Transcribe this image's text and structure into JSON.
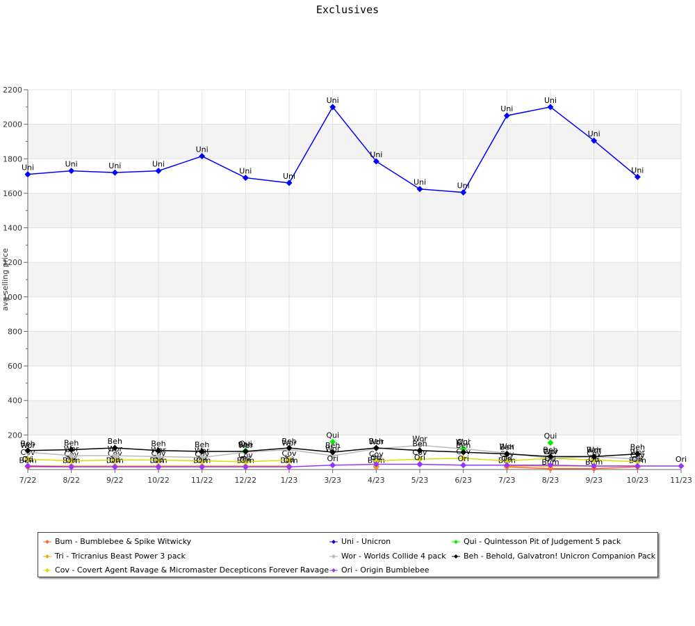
{
  "chart_data": {
    "type": "line",
    "title": "Exclusives",
    "ylabel": "avg selling price",
    "xlabel": "",
    "ylim": [
      0,
      2200
    ],
    "yticks": [
      200,
      400,
      600,
      800,
      1000,
      1200,
      1400,
      1600,
      1800,
      2000,
      2200
    ],
    "grid": true,
    "legend_position": "bottom",
    "categories": [
      "7/22",
      "8/22",
      "9/22",
      "10/22",
      "11/22",
      "12/22",
      "1/23",
      "3/23",
      "4/23",
      "5/23",
      "6/23",
      "7/23",
      "8/23",
      "9/23",
      "10/23",
      "11/23"
    ],
    "series": [
      {
        "name": "Bum - Bumblebee & Spike Witwicky",
        "short": "Bum",
        "color": "#ff6633",
        "values": [
          15,
          15,
          15,
          15,
          15,
          15,
          15,
          null,
          15,
          null,
          null,
          15,
          5,
          5,
          15,
          null
        ]
      },
      {
        "name": "Tri - Tricranius Beast Power 3 pack",
        "short": "Tri",
        "color": "#ffaa00",
        "values": [
          20,
          20,
          20,
          20,
          20,
          20,
          20,
          null,
          20,
          null,
          null,
          20,
          20,
          20,
          20,
          null
        ]
      },
      {
        "name": "Cov - Covert Agent Ravage & Micromaster Decepticons Forever Ravage",
        "short": "Cov",
        "color": "#dddd00",
        "values": [
          60,
          50,
          55,
          55,
          50,
          45,
          55,
          null,
          50,
          60,
          65,
          50,
          65,
          55,
          45,
          null
        ]
      },
      {
        "name": "Uni - Unicron",
        "short": "Uni",
        "color": "#0000ff",
        "values": [
          1710,
          1730,
          1720,
          1730,
          1815,
          1690,
          1660,
          2100,
          1785,
          1625,
          1605,
          2050,
          2100,
          1905,
          1695,
          null
        ]
      },
      {
        "name": "Wor - Worlds Collide 4 pack",
        "short": "Wor",
        "color": "#bbbbbb",
        "values": [
          100,
          80,
          80,
          75,
          70,
          100,
          115,
          80,
          120,
          140,
          120,
          95,
          65,
          75,
          60,
          null
        ]
      },
      {
        "name": "Ori - Origin Bumblebee",
        "short": "Ori",
        "color": "#9933ff",
        "values": [
          20,
          15,
          15,
          15,
          15,
          15,
          15,
          25,
          30,
          30,
          25,
          25,
          25,
          20,
          20,
          20
        ]
      },
      {
        "name": "Qui - Quintesson Pit of Judgement 5 pack",
        "short": "Qui",
        "color": "#00ee00",
        "values": [
          null,
          null,
          null,
          null,
          null,
          110,
          null,
          160,
          null,
          null,
          120,
          null,
          155,
          null,
          null,
          null
        ]
      },
      {
        "name": "Beh - Behold, Galvatron! Unicron Companion Pack",
        "short": "Beh",
        "color": "#000000",
        "values": [
          110,
          115,
          125,
          110,
          105,
          105,
          125,
          100,
          125,
          110,
          100,
          90,
          75,
          75,
          90,
          null
        ]
      }
    ]
  }
}
